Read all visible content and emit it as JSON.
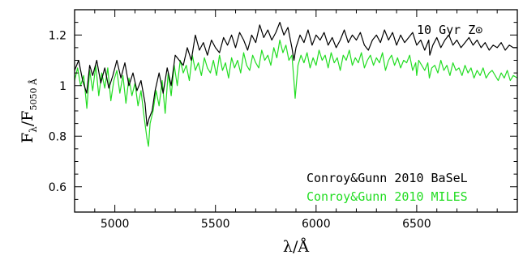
{
  "chart_data": {
    "type": "line",
    "xlabel": "λ/Å",
    "ylabel": "F_λ/F_5050 Å",
    "ylabel_main": "F",
    "ylabel_sub1": "λ",
    "ylabel_mid": "/F",
    "ylabel_sub2": "5050 Å",
    "xlim": [
      4800,
      7000
    ],
    "ylim": [
      0.5,
      1.3
    ],
    "x_ticks": [
      5000,
      5500,
      6000,
      6500
    ],
    "x_tick_labels": [
      "5000",
      "5500",
      "6000",
      "6500"
    ],
    "y_ticks": [
      0.6,
      0.8,
      1.0,
      1.2
    ],
    "y_tick_labels": [
      "0.6",
      "0.8",
      "1",
      "1.2"
    ],
    "annotation": "10 Gyr Z⊙",
    "grid": false,
    "legend_position": "bottom-right",
    "series": [
      {
        "name": "Conroy&Gunn 2010 BaSeL",
        "color": "#000000",
        "x": [
          4800,
          4820,
          4840,
          4860,
          4875,
          4890,
          4910,
          4930,
          4950,
          4970,
          4990,
          5010,
          5030,
          5050,
          5070,
          5090,
          5110,
          5130,
          5150,
          5160,
          5170,
          5185,
          5200,
          5220,
          5240,
          5260,
          5280,
          5300,
          5320,
          5340,
          5360,
          5380,
          5400,
          5420,
          5440,
          5460,
          5480,
          5500,
          5520,
          5540,
          5560,
          5580,
          5600,
          5620,
          5640,
          5660,
          5680,
          5700,
          5720,
          5740,
          5760,
          5780,
          5800,
          5820,
          5840,
          5860,
          5880,
          5890,
          5900,
          5920,
          5940,
          5960,
          5980,
          6000,
          6020,
          6040,
          6060,
          6080,
          6100,
          6120,
          6140,
          6160,
          6180,
          6200,
          6220,
          6240,
          6260,
          6280,
          6300,
          6320,
          6340,
          6360,
          6380,
          6400,
          6420,
          6440,
          6460,
          6480,
          6500,
          6520,
          6540,
          6560,
          6565,
          6580,
          6600,
          6620,
          6640,
          6660,
          6680,
          6700,
          6720,
          6740,
          6760,
          6780,
          6800,
          6820,
          6840,
          6860,
          6880,
          6900,
          6920,
          6940,
          6960,
          6980,
          7000
        ],
        "values": [
          1.06,
          1.1,
          1.02,
          0.97,
          1.08,
          1.04,
          1.1,
          1.01,
          1.07,
          0.99,
          1.04,
          1.1,
          1.03,
          1.09,
          1.0,
          1.05,
          0.98,
          1.02,
          0.93,
          0.84,
          0.87,
          0.9,
          0.98,
          1.05,
          0.97,
          1.07,
          1.0,
          1.12,
          1.1,
          1.08,
          1.15,
          1.1,
          1.2,
          1.14,
          1.17,
          1.12,
          1.18,
          1.15,
          1.13,
          1.19,
          1.16,
          1.2,
          1.15,
          1.21,
          1.18,
          1.14,
          1.2,
          1.17,
          1.24,
          1.19,
          1.22,
          1.18,
          1.21,
          1.25,
          1.2,
          1.23,
          1.15,
          1.1,
          1.15,
          1.2,
          1.17,
          1.22,
          1.16,
          1.2,
          1.18,
          1.21,
          1.16,
          1.19,
          1.15,
          1.18,
          1.22,
          1.17,
          1.2,
          1.18,
          1.21,
          1.16,
          1.14,
          1.18,
          1.2,
          1.17,
          1.22,
          1.18,
          1.21,
          1.16,
          1.2,
          1.17,
          1.19,
          1.21,
          1.16,
          1.18,
          1.14,
          1.18,
          1.12,
          1.16,
          1.19,
          1.15,
          1.18,
          1.2,
          1.16,
          1.18,
          1.15,
          1.17,
          1.19,
          1.16,
          1.18,
          1.15,
          1.17,
          1.14,
          1.16,
          1.15,
          1.17,
          1.14,
          1.16,
          1.15,
          1.15
        ]
      },
      {
        "name": "Conroy&Gunn 2010 MILES",
        "color": "#22dd22",
        "x": [
          4800,
          4815,
          4830,
          4845,
          4861,
          4875,
          4890,
          4905,
          4920,
          4935,
          4950,
          4965,
          4980,
          4995,
          5010,
          5025,
          5040,
          5055,
          5070,
          5085,
          5100,
          5115,
          5130,
          5145,
          5160,
          5167,
          5175,
          5190,
          5205,
          5220,
          5235,
          5250,
          5265,
          5280,
          5295,
          5310,
          5325,
          5340,
          5355,
          5370,
          5385,
          5400,
          5415,
          5430,
          5445,
          5460,
          5475,
          5490,
          5505,
          5520,
          5535,
          5550,
          5565,
          5580,
          5595,
          5610,
          5625,
          5640,
          5655,
          5670,
          5685,
          5700,
          5715,
          5730,
          5745,
          5760,
          5775,
          5790,
          5805,
          5820,
          5835,
          5850,
          5865,
          5880,
          5890,
          5896,
          5910,
          5925,
          5940,
          5955,
          5970,
          5985,
          6000,
          6015,
          6030,
          6045,
          6060,
          6075,
          6090,
          6105,
          6120,
          6135,
          6150,
          6165,
          6180,
          6195,
          6210,
          6225,
          6240,
          6255,
          6270,
          6285,
          6300,
          6315,
          6330,
          6345,
          6360,
          6375,
          6390,
          6405,
          6420,
          6435,
          6450,
          6465,
          6480,
          6495,
          6500,
          6510,
          6525,
          6540,
          6555,
          6563,
          6575,
          6590,
          6605,
          6620,
          6635,
          6650,
          6665,
          6680,
          6695,
          6710,
          6725,
          6740,
          6755,
          6770,
          6785,
          6800,
          6815,
          6830,
          6845,
          6860,
          6875,
          6890,
          6905,
          6920,
          6935,
          6950,
          6965,
          6980,
          7000
        ],
        "values": [
          1.02,
          1.07,
          1.0,
          1.04,
          0.91,
          1.06,
          0.98,
          1.08,
          0.96,
          1.05,
          0.99,
          1.07,
          0.94,
          1.02,
          1.06,
          0.97,
          1.04,
          0.93,
          1.03,
          0.96,
          1.01,
          0.92,
          0.98,
          0.88,
          0.79,
          0.76,
          0.85,
          0.9,
          0.98,
          0.92,
          1.02,
          0.89,
          1.05,
          0.96,
          1.08,
          1.0,
          1.1,
          1.05,
          1.08,
          1.02,
          1.12,
          1.06,
          1.09,
          1.04,
          1.11,
          1.07,
          1.05,
          1.1,
          1.04,
          1.12,
          1.06,
          1.09,
          1.03,
          1.11,
          1.07,
          1.1,
          1.05,
          1.13,
          1.08,
          1.06,
          1.12,
          1.09,
          1.07,
          1.14,
          1.1,
          1.12,
          1.08,
          1.15,
          1.11,
          1.18,
          1.13,
          1.16,
          1.1,
          1.12,
          1.02,
          0.95,
          1.08,
          1.12,
          1.09,
          1.13,
          1.07,
          1.11,
          1.08,
          1.14,
          1.1,
          1.12,
          1.07,
          1.13,
          1.09,
          1.11,
          1.06,
          1.12,
          1.1,
          1.14,
          1.08,
          1.11,
          1.09,
          1.13,
          1.07,
          1.1,
          1.12,
          1.08,
          1.11,
          1.09,
          1.13,
          1.06,
          1.1,
          1.12,
          1.08,
          1.11,
          1.07,
          1.1,
          1.09,
          1.12,
          1.06,
          1.09,
          1.04,
          1.1,
          1.08,
          1.06,
          1.09,
          1.03,
          1.07,
          1.08,
          1.05,
          1.1,
          1.06,
          1.08,
          1.04,
          1.09,
          1.06,
          1.07,
          1.04,
          1.08,
          1.05,
          1.07,
          1.03,
          1.06,
          1.04,
          1.07,
          1.03,
          1.05,
          1.06,
          1.04,
          1.02,
          1.05,
          1.03,
          1.06,
          1.02,
          1.04,
          1.03
        ]
      }
    ]
  }
}
